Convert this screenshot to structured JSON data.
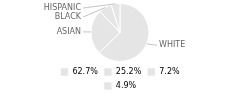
{
  "chart_data": {
    "type": "pie",
    "categories": [
      "WHITE",
      "ASIAN",
      "BLACK",
      "HISPANIC"
    ],
    "values": [
      62.7,
      25.2,
      7.2,
      4.9
    ],
    "value_labels": [
      "62.7%",
      "25.2%",
      "7.2%",
      "4.9%"
    ],
    "legend": "bottom"
  }
}
